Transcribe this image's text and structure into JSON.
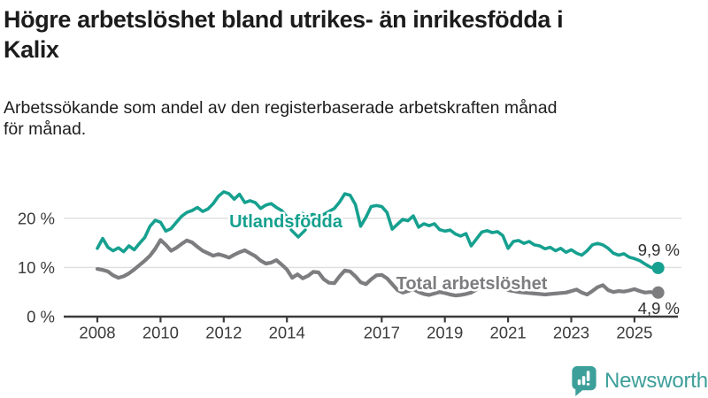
{
  "header": {
    "title_lines": [
      "Högre arbetslöshet bland utrikes- än inrikesfödda i",
      "Kalix"
    ],
    "subtitle_lines": [
      "Arbetssökande som andel av den registerbaserade arbetskraften månad",
      "för månad."
    ]
  },
  "chart_data": {
    "type": "line",
    "title": "Högre arbetslöshet bland utrikes- än inrikesfödda i Kalix",
    "subtitle": "Arbetssökande som andel av den registerbaserade arbetskraften månad för månad.",
    "unit": "percent of registered labour force",
    "x_start": 2008,
    "x_step_years": 0.1667,
    "x_end": 2025.75,
    "xlim": [
      2007.6,
      2026.3
    ],
    "ylim": [
      0,
      27
    ],
    "grid": "horizontal",
    "y_gridlines": [
      10,
      20
    ],
    "y_ticks": [
      {
        "value": 0,
        "label": "0 %"
      },
      {
        "value": 10,
        "label": "10 %"
      },
      {
        "value": 20,
        "label": "20 %"
      }
    ],
    "x_ticks": [
      {
        "year": 2008,
        "label": "2008"
      },
      {
        "year": 2010,
        "label": "2010"
      },
      {
        "year": 2012,
        "label": "2012"
      },
      {
        "year": 2014,
        "label": "2014"
      },
      {
        "year": 2017,
        "label": "2017"
      },
      {
        "year": 2019,
        "label": "2019"
      },
      {
        "year": 2021,
        "label": "2021"
      },
      {
        "year": 2023,
        "label": "2023"
      },
      {
        "year": 2025,
        "label": "2025"
      }
    ],
    "series": [
      {
        "name": "Utlandsfödda",
        "color": "#16a08f",
        "end_label": "9,9 %",
        "end_value": 9.9,
        "values": [
          13.9,
          15.9,
          14.1,
          13.4,
          14.0,
          13.2,
          14.4,
          13.6,
          14.9,
          16.1,
          18.4,
          19.6,
          19.2,
          17.4,
          17.9,
          19.2,
          20.4,
          21.2,
          21.6,
          22.2,
          21.4,
          21.9,
          23.0,
          24.5,
          25.4,
          25.0,
          23.9,
          24.9,
          23.2,
          23.6,
          23.2,
          22.0,
          22.7,
          23.0,
          22.2,
          21.6,
          20.3,
          19.6,
          20.6,
          21.0,
          20.5,
          20.8,
          20.3,
          20.8,
          21.4,
          22.0,
          23.3,
          25.0,
          24.7,
          22.8,
          18.4,
          20.2,
          22.4,
          22.6,
          22.4,
          21.2,
          17.8,
          18.8,
          19.8,
          19.5,
          20.5,
          18.2,
          18.9,
          18.5,
          18.9,
          17.7,
          17.4,
          17.6,
          16.8,
          16.4,
          16.9,
          14.4,
          15.8,
          17.2,
          17.5,
          17.1,
          17.3,
          16.5,
          13.9,
          15.3,
          15.5,
          14.9,
          15.3,
          14.6,
          14.4,
          13.8,
          14.1,
          13.4,
          13.9,
          13.1,
          13.6,
          12.9,
          12.5,
          13.4,
          14.6,
          14.9,
          14.6,
          13.9,
          12.9,
          12.5,
          12.8,
          12.1,
          11.8,
          11.4,
          10.7,
          10.1,
          9.7,
          9.9
        ]
      },
      {
        "name": "Total arbetslöshet",
        "color": "#7d7d80",
        "end_label": "4,9 %",
        "end_value": 4.9,
        "values": [
          9.7,
          9.5,
          9.2,
          8.4,
          7.9,
          8.2,
          8.8,
          9.6,
          10.5,
          11.4,
          12.4,
          13.8,
          15.6,
          14.6,
          13.4,
          14.0,
          14.8,
          15.5,
          15.1,
          14.2,
          13.4,
          12.9,
          12.4,
          12.7,
          12.4,
          12.0,
          12.6,
          13.1,
          13.5,
          12.9,
          12.3,
          11.4,
          10.8,
          11.0,
          11.5,
          10.6,
          9.6,
          7.9,
          8.6,
          7.8,
          8.3,
          9.1,
          9.0,
          7.6,
          6.9,
          6.8,
          8.2,
          9.4,
          9.2,
          8.2,
          7.0,
          6.6,
          7.6,
          8.4,
          8.5,
          7.8,
          6.6,
          5.4,
          4.9,
          5.2,
          5.6,
          5.0,
          4.6,
          4.4,
          4.7,
          5.0,
          4.8,
          4.5,
          4.3,
          4.4,
          4.6,
          4.9,
          5.5,
          6.2,
          6.4,
          6.1,
          5.9,
          5.7,
          5.4,
          5.2,
          5.0,
          4.9,
          4.8,
          4.7,
          4.6,
          4.5,
          4.6,
          4.7,
          4.8,
          4.9,
          5.2,
          5.5,
          4.9,
          4.5,
          5.2,
          6.0,
          6.4,
          5.4,
          5.0,
          5.2,
          5.1,
          5.3,
          5.6,
          5.2,
          4.9,
          5.0,
          4.8,
          4.9
        ]
      }
    ]
  },
  "branding": {
    "logo_text": "Newsworthy",
    "logo_color": "#3d9f99"
  },
  "colors": {
    "utlandsfodda_line": "#16a08f",
    "total_line": "#7d7d80",
    "axis": "#3b3b3b",
    "gridline": "#dedede"
  }
}
